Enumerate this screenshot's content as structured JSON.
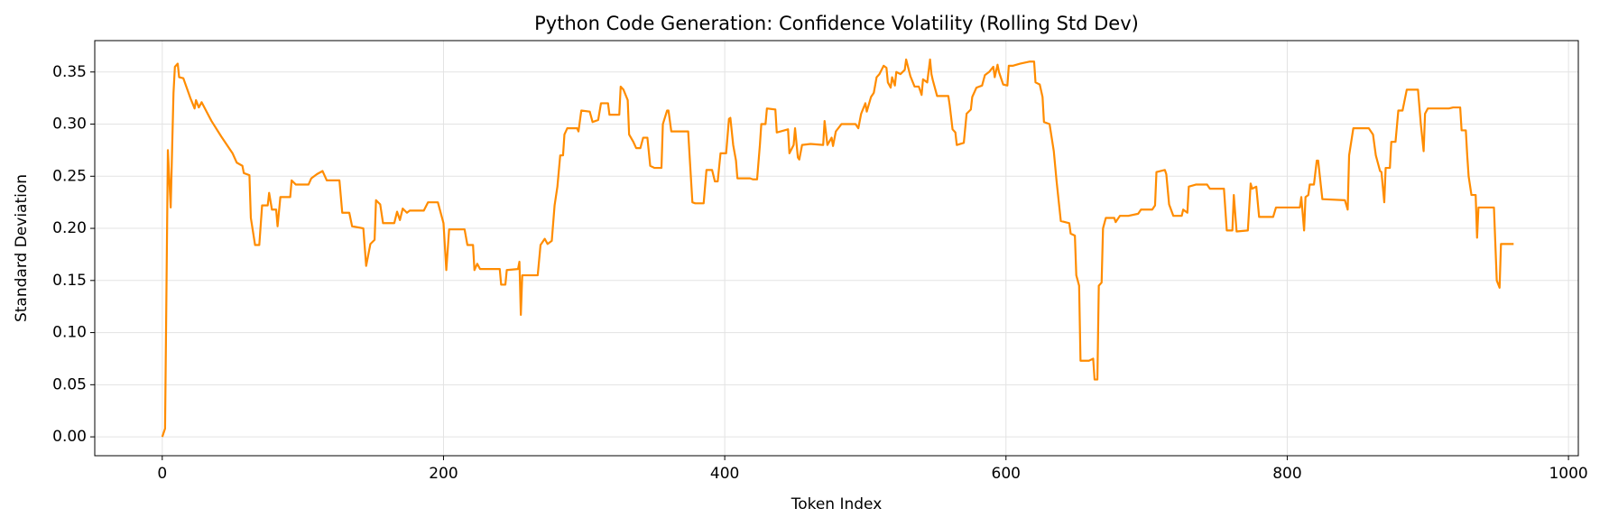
{
  "chart_data": {
    "type": "line",
    "title": "Python Code Generation: Confidence Volatility (Rolling Std Dev)",
    "x_label": "Token Index",
    "y_label": "Standard Deviation",
    "color": "#ff8c00",
    "grid": true,
    "xlim": [
      -48,
      1007
    ],
    "ylim": [
      -0.0181,
      0.3801
    ],
    "xticks": [
      0,
      200,
      400,
      600,
      800,
      1000
    ],
    "yticks": [
      {
        "value": 0,
        "label": "0.00"
      },
      {
        "value": 0.05,
        "label": "0.05"
      },
      {
        "value": 0.1,
        "label": "0.10"
      },
      {
        "value": 0.15,
        "label": "0.15"
      },
      {
        "value": 0.2,
        "label": "0.20"
      },
      {
        "value": 0.25,
        "label": "0.25"
      },
      {
        "value": 0.3,
        "label": "0.30"
      },
      {
        "value": 0.35,
        "label": "0.35"
      }
    ],
    "x": [
      0,
      2,
      4,
      6,
      8,
      9,
      11,
      12,
      15,
      20,
      23,
      24,
      26,
      28,
      35,
      42,
      50,
      53,
      57,
      58,
      62,
      63,
      66,
      69,
      71,
      75,
      76,
      78,
      81,
      82,
      84,
      91,
      92,
      95,
      104,
      106,
      110,
      114,
      117,
      126,
      128,
      133,
      135,
      143,
      145,
      148,
      151,
      152,
      155,
      157,
      165,
      167,
      169,
      171,
      174,
      176,
      186,
      189,
      196,
      199,
      200,
      202,
      204,
      215,
      217,
      221,
      222,
      224,
      226,
      240,
      241,
      244,
      245,
      253,
      254,
      255,
      256,
      267,
      269,
      272,
      274,
      277,
      279,
      281,
      283,
      285,
      286,
      288,
      295,
      296,
      298,
      304,
      306,
      310,
      312,
      317,
      318,
      325,
      326,
      328,
      331,
      332,
      335,
      337,
      340,
      342,
      345,
      347,
      350,
      355,
      356,
      359,
      360,
      362,
      374,
      375,
      377,
      379,
      385,
      387,
      391,
      393,
      395,
      397,
      401,
      403,
      404,
      406,
      408,
      409,
      418,
      420,
      423,
      425,
      426,
      429,
      430,
      436,
      437,
      445,
      446,
      449,
      450,
      452,
      453,
      455,
      461,
      470,
      471,
      473,
      476,
      477,
      479,
      483,
      493,
      495,
      497,
      500,
      501,
      504,
      506,
      508,
      510,
      513,
      515,
      516,
      518,
      519,
      521,
      522,
      525,
      528,
      529,
      532,
      535,
      538,
      540,
      541,
      544,
      546,
      547,
      548,
      551,
      559,
      560,
      562,
      564,
      565,
      570,
      572,
      575,
      576,
      579,
      583,
      585,
      588,
      591,
      592,
      594,
      595,
      598,
      601,
      602,
      605,
      610,
      617,
      620,
      621,
      624,
      626,
      627,
      631,
      634,
      636,
      639,
      645,
      646,
      649,
      650,
      652,
      653,
      659,
      662,
      663,
      665,
      666,
      668,
      669,
      671,
      677,
      678,
      681,
      687,
      694,
      696,
      704,
      706,
      707,
      713,
      714,
      716,
      719,
      725,
      726,
      729,
      730,
      735,
      743,
      745,
      755,
      757,
      761,
      762,
      764,
      772,
      774,
      775,
      778,
      780,
      790,
      792,
      809,
      810,
      812,
      813,
      815,
      816,
      819,
      821,
      822,
      824,
      825,
      841,
      843,
      844,
      847,
      858,
      861,
      863,
      866,
      867,
      869,
      870,
      873,
      874,
      877,
      879,
      882,
      885,
      893,
      895,
      897,
      898,
      900,
      915,
      918,
      923,
      924,
      927,
      928,
      929,
      931,
      934,
      935,
      936,
      947,
      949,
      951,
      952,
      961
    ],
    "values": [
      0,
      0.008,
      0.275,
      0.22,
      0.33,
      0.355,
      0.358,
      0.345,
      0.344,
      0.325,
      0.315,
      0.323,
      0.316,
      0.321,
      0.303,
      0.288,
      0.272,
      0.263,
      0.26,
      0.253,
      0.251,
      0.21,
      0.184,
      0.184,
      0.222,
      0.222,
      0.234,
      0.218,
      0.218,
      0.202,
      0.23,
      0.23,
      0.246,
      0.242,
      0.242,
      0.248,
      0.252,
      0.255,
      0.246,
      0.246,
      0.215,
      0.215,
      0.202,
      0.2,
      0.164,
      0.185,
      0.189,
      0.227,
      0.223,
      0.205,
      0.205,
      0.216,
      0.208,
      0.219,
      0.215,
      0.217,
      0.217,
      0.225,
      0.225,
      0.21,
      0.205,
      0.16,
      0.199,
      0.199,
      0.184,
      0.184,
      0.16,
      0.166,
      0.161,
      0.161,
      0.146,
      0.146,
      0.16,
      0.161,
      0.168,
      0.117,
      0.155,
      0.155,
      0.184,
      0.19,
      0.185,
      0.188,
      0.222,
      0.24,
      0.27,
      0.27,
      0.29,
      0.296,
      0.296,
      0.293,
      0.313,
      0.312,
      0.302,
      0.304,
      0.32,
      0.32,
      0.309,
      0.309,
      0.336,
      0.333,
      0.323,
      0.29,
      0.283,
      0.277,
      0.277,
      0.287,
      0.287,
      0.26,
      0.258,
      0.258,
      0.3,
      0.313,
      0.313,
      0.293,
      0.293,
      0.27,
      0.225,
      0.224,
      0.224,
      0.256,
      0.256,
      0.245,
      0.245,
      0.272,
      0.272,
      0.305,
      0.306,
      0.28,
      0.265,
      0.248,
      0.248,
      0.247,
      0.247,
      0.28,
      0.3,
      0.3,
      0.315,
      0.314,
      0.292,
      0.295,
      0.272,
      0.28,
      0.296,
      0.268,
      0.266,
      0.28,
      0.281,
      0.28,
      0.303,
      0.28,
      0.287,
      0.279,
      0.293,
      0.3,
      0.3,
      0.296,
      0.31,
      0.32,
      0.312,
      0.326,
      0.33,
      0.345,
      0.348,
      0.356,
      0.354,
      0.34,
      0.335,
      0.345,
      0.337,
      0.35,
      0.348,
      0.352,
      0.362,
      0.346,
      0.336,
      0.336,
      0.328,
      0.343,
      0.34,
      0.362,
      0.348,
      0.342,
      0.327,
      0.327,
      0.318,
      0.295,
      0.292,
      0.28,
      0.282,
      0.31,
      0.314,
      0.326,
      0.335,
      0.337,
      0.347,
      0.35,
      0.355,
      0.345,
      0.357,
      0.35,
      0.338,
      0.337,
      0.356,
      0.356,
      0.358,
      0.36,
      0.36,
      0.34,
      0.338,
      0.326,
      0.302,
      0.3,
      0.274,
      0.245,
      0.207,
      0.205,
      0.195,
      0.193,
      0.155,
      0.145,
      0.073,
      0.073,
      0.075,
      0.055,
      0.055,
      0.145,
      0.148,
      0.2,
      0.21,
      0.21,
      0.206,
      0.212,
      0.212,
      0.214,
      0.218,
      0.218,
      0.222,
      0.254,
      0.256,
      0.252,
      0.223,
      0.212,
      0.212,
      0.218,
      0.215,
      0.24,
      0.242,
      0.242,
      0.238,
      0.238,
      0.198,
      0.198,
      0.232,
      0.197,
      0.198,
      0.243,
      0.238,
      0.24,
      0.211,
      0.211,
      0.22,
      0.22,
      0.23,
      0.198,
      0.23,
      0.232,
      0.242,
      0.242,
      0.265,
      0.265,
      0.24,
      0.228,
      0.227,
      0.218,
      0.27,
      0.296,
      0.296,
      0.29,
      0.27,
      0.255,
      0.254,
      0.225,
      0.258,
      0.258,
      0.283,
      0.283,
      0.313,
      0.313,
      0.333,
      0.333,
      0.3,
      0.274,
      0.31,
      0.315,
      0.315,
      0.316,
      0.316,
      0.294,
      0.294,
      0.27,
      0.25,
      0.232,
      0.232,
      0.191,
      0.22,
      0.22,
      0.15,
      0.143,
      0.185,
      0.185
    ]
  }
}
